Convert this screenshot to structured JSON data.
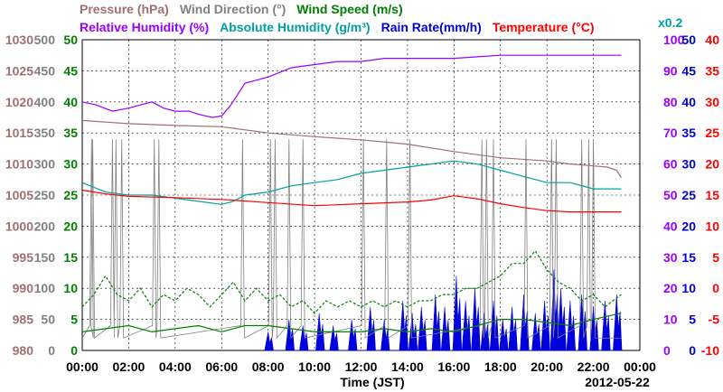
{
  "chart_data": {
    "type": "line",
    "legend_row1": [
      {
        "name": "Pressure (hPa)",
        "color": "#a07070"
      },
      {
        "name": "Wind Direction (°)",
        "color": "#808080"
      },
      {
        "name": "Wind Speed (m/s)",
        "color": "#008000"
      }
    ],
    "legend_row2": [
      {
        "name": "Relative Humidity (%)",
        "color": "#9900ff"
      },
      {
        "name": "Absolute Humidity (g/m³)",
        "color": "#00a0a0"
      },
      {
        "name": "Rain Rate(mm/h)",
        "color": "#0000dd"
      },
      {
        "name": "Temperature (°C)",
        "color": "#ff0000"
      }
    ],
    "rain_scale_note": "x0.2",
    "xlabel": "Time (JST)",
    "date": "2012-05-22",
    "x_ticks": [
      "00:00",
      "02:00",
      "04:00",
      "06:00",
      "08:00",
      "10:00",
      "12:00",
      "14:00",
      "16:00",
      "18:00",
      "20:00",
      "22:00",
      "00:00"
    ],
    "axes": {
      "pressure": {
        "ticks": [
          "1030",
          "1025",
          "1020",
          "1015",
          "1010",
          "1005",
          "1000",
          "995",
          "990",
          "985",
          "980"
        ],
        "range": [
          980,
          1030
        ],
        "color": "#a07070"
      },
      "wind_direction": {
        "ticks": [
          "500",
          "450",
          "400",
          "350",
          "300",
          "250",
          "200",
          "150",
          "100",
          "50",
          "0"
        ],
        "range": [
          0,
          500
        ],
        "color": "#808080"
      },
      "wind_speed": {
        "ticks": [
          "50",
          "45",
          "40",
          "35",
          "30",
          "25",
          "20",
          "15",
          "10",
          "5",
          "0"
        ],
        "range": [
          0,
          50
        ],
        "color": "#008000"
      },
      "humidity": {
        "ticks": [
          "100",
          "90",
          "80",
          "70",
          "60",
          "50",
          "40",
          "30",
          "20",
          "10",
          "0"
        ],
        "range": [
          0,
          100
        ],
        "color": "#9900ff"
      },
      "rain_rate": {
        "ticks": [
          "50",
          "45",
          "40",
          "35",
          "30",
          "25",
          "20",
          "15",
          "10",
          "5",
          "0"
        ],
        "range": [
          0,
          50
        ],
        "color": "#0000dd"
      },
      "temperature": {
        "ticks": [
          "40",
          "35",
          "30",
          "25",
          "20",
          "15",
          "10",
          "5",
          "0",
          "-5",
          "-10"
        ],
        "range": [
          -10,
          40
        ],
        "color": "#ff0000"
      }
    },
    "series": [
      {
        "name": "Relative Humidity (%)",
        "color": "#9900ff",
        "axis": "humidity",
        "points": [
          [
            0,
            80
          ],
          [
            0.6,
            79
          ],
          [
            1.3,
            77
          ],
          [
            2.0,
            78
          ],
          [
            3.0,
            80
          ],
          [
            3.5,
            78
          ],
          [
            4.0,
            77
          ],
          [
            4.6,
            77
          ],
          [
            5.0,
            76
          ],
          [
            5.6,
            75
          ],
          [
            6.0,
            75.5
          ],
          [
            6.4,
            79
          ],
          [
            7.0,
            86
          ],
          [
            8.0,
            88
          ],
          [
            9.0,
            91
          ],
          [
            10.0,
            92
          ],
          [
            11.0,
            93
          ],
          [
            12.0,
            93
          ],
          [
            13.0,
            94
          ],
          [
            14.0,
            94
          ],
          [
            15.0,
            94
          ],
          [
            16.0,
            94
          ],
          [
            17.0,
            94.5
          ],
          [
            18.0,
            95
          ],
          [
            20.0,
            95
          ],
          [
            22.0,
            95
          ],
          [
            23.2,
            95
          ]
        ]
      },
      {
        "name": "Pressure (hPa)",
        "color": "#a07070",
        "axis": "pressure",
        "points": [
          [
            0,
            1017
          ],
          [
            2,
            1016.5
          ],
          [
            4,
            1016.2
          ],
          [
            6,
            1016
          ],
          [
            8,
            1015
          ],
          [
            10,
            1014.4
          ],
          [
            12,
            1013.9
          ],
          [
            14,
            1013.2
          ],
          [
            16,
            1012
          ],
          [
            18,
            1011
          ],
          [
            20,
            1010.5
          ],
          [
            21,
            1010
          ],
          [
            22,
            1009.7
          ],
          [
            22.6,
            1009.5
          ],
          [
            23.0,
            1009
          ],
          [
            23.2,
            1007.8
          ]
        ]
      },
      {
        "name": "Absolute Humidity (g/m³)",
        "color": "#00a0a0",
        "axis": "humidity",
        "points": [
          [
            0,
            54
          ],
          [
            1,
            51
          ],
          [
            2,
            50
          ],
          [
            3,
            50
          ],
          [
            4,
            49
          ],
          [
            5,
            48
          ],
          [
            6,
            47
          ],
          [
            6.5,
            48
          ],
          [
            7,
            50
          ],
          [
            8,
            51
          ],
          [
            9,
            53
          ],
          [
            10,
            54
          ],
          [
            11,
            55
          ],
          [
            12,
            57
          ],
          [
            13,
            58
          ],
          [
            14,
            59
          ],
          [
            15,
            60
          ],
          [
            16,
            61
          ],
          [
            17,
            60
          ],
          [
            18,
            58
          ],
          [
            19,
            56
          ],
          [
            20,
            54
          ],
          [
            21,
            54
          ],
          [
            22,
            52
          ],
          [
            23.2,
            52
          ]
        ]
      },
      {
        "name": "Temperature (°C)",
        "color": "#ff0000",
        "axis": "temperature",
        "points": [
          [
            0,
            15.8
          ],
          [
            1,
            15.2
          ],
          [
            2,
            14.8
          ],
          [
            4,
            14.6
          ],
          [
            6,
            14.3
          ],
          [
            8,
            13.8
          ],
          [
            10,
            13.3
          ],
          [
            12,
            13.6
          ],
          [
            14,
            13.9
          ],
          [
            15,
            14.2
          ],
          [
            16,
            14.9
          ],
          [
            17,
            14.4
          ],
          [
            18,
            13.6
          ],
          [
            19,
            13.0
          ],
          [
            20,
            12.5
          ],
          [
            21,
            12.3
          ],
          [
            22,
            12.3
          ],
          [
            23.2,
            12.3
          ]
        ]
      },
      {
        "name": "Wind Speed (m/s) avg",
        "color": "#008000",
        "axis": "wind_speed",
        "points": [
          [
            0,
            3
          ],
          [
            1,
            3.5
          ],
          [
            2,
            4
          ],
          [
            3,
            3
          ],
          [
            4,
            3.5
          ],
          [
            5,
            4
          ],
          [
            6,
            3
          ],
          [
            7,
            4
          ],
          [
            8,
            4
          ],
          [
            9,
            3.5
          ],
          [
            10,
            3
          ],
          [
            11,
            3
          ],
          [
            12,
            3
          ],
          [
            13,
            3.5
          ],
          [
            14,
            3
          ],
          [
            15,
            3.5
          ],
          [
            16,
            3
          ],
          [
            17,
            4
          ],
          [
            18,
            5
          ],
          [
            19,
            5
          ],
          [
            20,
            4.5
          ],
          [
            21,
            4
          ],
          [
            22,
            5
          ],
          [
            23.2,
            6
          ]
        ]
      },
      {
        "name": "Wind Speed (m/s) gust",
        "color": "#008000",
        "axis": "wind_speed",
        "dash": "3,2",
        "points": [
          [
            0,
            7
          ],
          [
            0.5,
            9
          ],
          [
            1,
            12
          ],
          [
            1.5,
            9
          ],
          [
            2,
            8
          ],
          [
            2.5,
            10
          ],
          [
            3,
            7
          ],
          [
            3.5,
            9
          ],
          [
            4,
            8
          ],
          [
            4.5,
            10
          ],
          [
            5,
            9
          ],
          [
            5.5,
            7
          ],
          [
            6,
            9
          ],
          [
            6.5,
            11
          ],
          [
            7,
            8
          ],
          [
            7.5,
            10
          ],
          [
            8,
            8
          ],
          [
            8.5,
            9
          ],
          [
            9,
            7
          ],
          [
            9.5,
            8
          ],
          [
            10,
            6
          ],
          [
            10.5,
            8
          ],
          [
            11,
            7
          ],
          [
            11.5,
            8
          ],
          [
            12,
            7
          ],
          [
            12.5,
            8
          ],
          [
            13,
            7
          ],
          [
            13.5,
            8
          ],
          [
            14,
            7
          ],
          [
            14.5,
            8
          ],
          [
            15,
            8
          ],
          [
            15.5,
            9
          ],
          [
            16,
            9
          ],
          [
            16.5,
            10
          ],
          [
            17,
            10
          ],
          [
            17.5,
            11
          ],
          [
            18,
            12
          ],
          [
            18.5,
            14
          ],
          [
            19,
            14
          ],
          [
            19.5,
            16
          ],
          [
            20,
            13
          ],
          [
            20.5,
            11
          ],
          [
            21,
            10
          ],
          [
            21.5,
            8
          ],
          [
            22,
            9
          ],
          [
            22.5,
            7
          ],
          [
            23.2,
            9
          ]
        ]
      }
    ],
    "wind_direction_spikes": [
      0.4,
      0.45,
      1.3,
      1.45,
      1.7,
      3.1,
      3.3,
      6.9,
      8.1,
      8.3,
      8.9,
      9.5,
      12.1,
      13.1,
      14.1,
      17.2,
      17.4,
      17.7,
      19.1,
      20.2,
      20.4,
      21.5,
      21.8,
      22.0
    ],
    "rain_bursts": [
      [
        8.0,
        3
      ],
      [
        8.9,
        5
      ],
      [
        9.5,
        4
      ],
      [
        10.2,
        6
      ],
      [
        10.8,
        4
      ],
      [
        11.6,
        5
      ],
      [
        12.4,
        7
      ],
      [
        13.0,
        5
      ],
      [
        13.8,
        8
      ],
      [
        14.2,
        6
      ],
      [
        14.6,
        7
      ],
      [
        15.2,
        9
      ],
      [
        15.6,
        7
      ],
      [
        16.1,
        12
      ],
      [
        16.5,
        8
      ],
      [
        16.9,
        10
      ],
      [
        17.3,
        6
      ],
      [
        17.7,
        8
      ],
      [
        18.1,
        5
      ],
      [
        18.5,
        7
      ],
      [
        19.0,
        9
      ],
      [
        19.5,
        6
      ],
      [
        19.9,
        8
      ],
      [
        20.3,
        13
      ],
      [
        20.6,
        10
      ],
      [
        21.0,
        8
      ],
      [
        21.5,
        9
      ],
      [
        22.0,
        7
      ],
      [
        22.5,
        8
      ],
      [
        23.0,
        9
      ]
    ]
  }
}
